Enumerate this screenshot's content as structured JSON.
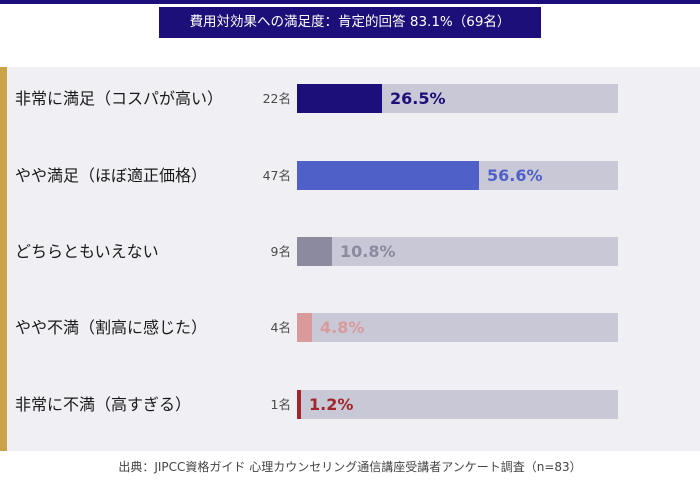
{
  "title": "費用対効果への満足度：肯定的回答 83.1%（69名）",
  "source": "出典：JIPCC資格ガイド 心理カウンセリング通信講座受講者アンケート調査（n=83）",
  "colors": {
    "navy": "#1c0f7a",
    "blue": "#4f61c8",
    "gray": "#8b8a9e",
    "pink": "#d99a9c",
    "red": "#a1262b",
    "track": "#c9c8d6",
    "accent_gold": "#c9a24a"
  },
  "chart_data": {
    "type": "bar",
    "orientation": "horizontal",
    "title": "費用対効果への満足度：肯定的回答 83.1%（69名）",
    "categories": [
      "非常に満足（コスパが高い）",
      "やや満足（ほぼ適正価格）",
      "どちらともいえない",
      "やや不満（割高に感じた）",
      "非常に不満（高すぎる）"
    ],
    "counts": [
      "22名",
      "47名",
      "9名",
      "4名",
      "1名"
    ],
    "values": [
      26.5,
      56.6,
      10.8,
      4.8,
      1.2
    ],
    "value_labels": [
      "26.5%",
      "56.6%",
      "10.8%",
      "4.8%",
      "1.2%"
    ],
    "bar_colors": [
      "#1c0f7a",
      "#4f61c8",
      "#8b8a9e",
      "#d99a9c",
      "#a1262b"
    ],
    "label_colors": [
      "#1c0f7a",
      "#4f61c8",
      "#8b8a9e",
      "#d99a9c",
      "#a1262b"
    ],
    "xlim": [
      0,
      100
    ],
    "unit": "%"
  }
}
